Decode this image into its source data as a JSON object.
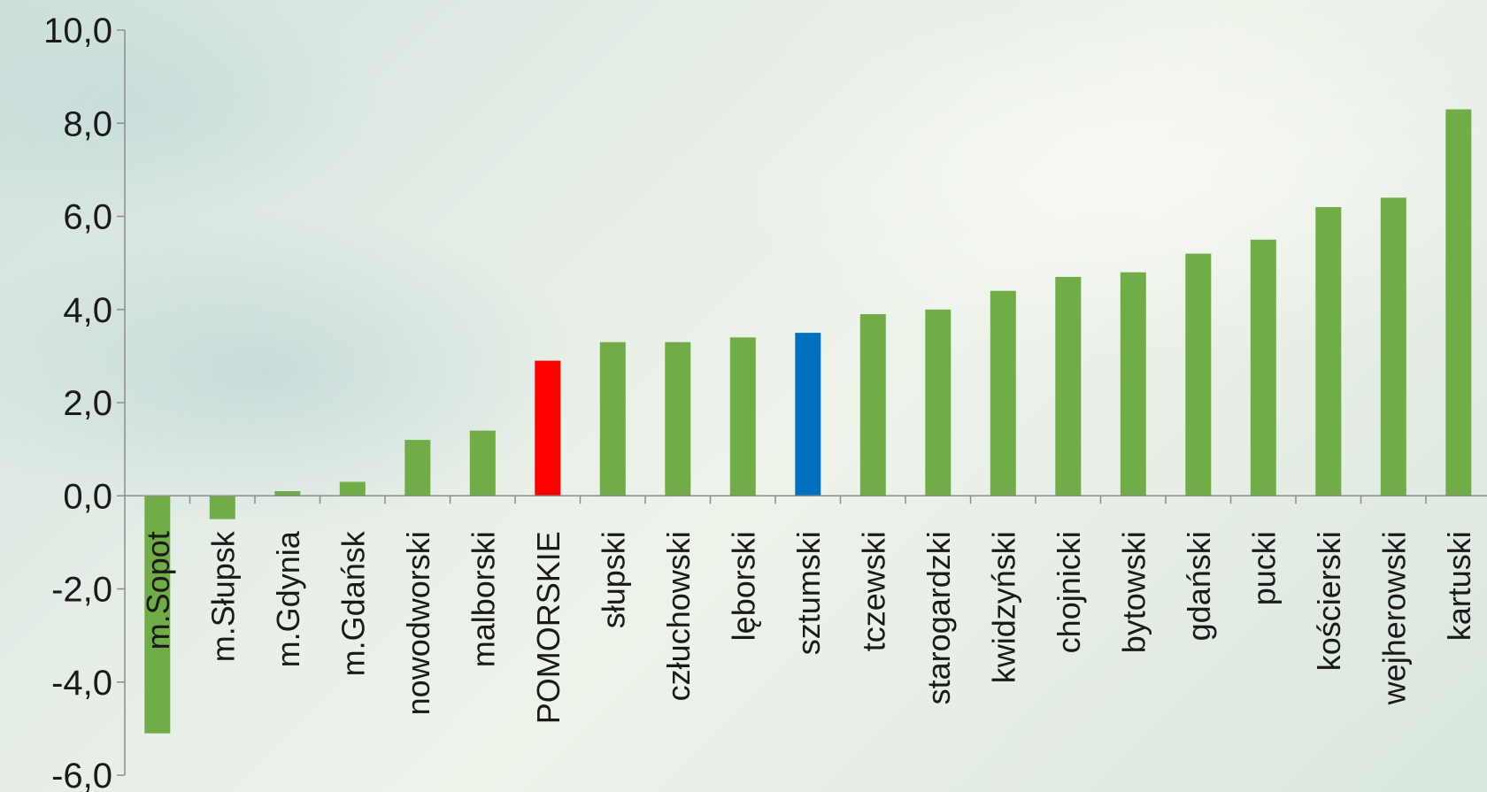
{
  "chart_data": {
    "type": "bar",
    "categories": [
      "m.Sopot",
      "m.Słupsk",
      "m.Gdynia",
      "m.Gdańsk",
      "nowodworski",
      "malborski",
      "POMORSKIE",
      "słupski",
      "człuchowski",
      "lęborski",
      "sztumski",
      "tczewski",
      "starogardzki",
      "kwidzyński",
      "chojnicki",
      "bytowski",
      "gdański",
      "pucki",
      "kościerski",
      "wejherowski",
      "kartuski"
    ],
    "values": [
      -5.1,
      -0.5,
      0.1,
      0.3,
      1.2,
      1.4,
      2.9,
      3.3,
      3.3,
      3.4,
      3.5,
      3.9,
      4.0,
      4.4,
      4.7,
      4.8,
      5.2,
      5.5,
      6.2,
      6.4,
      8.3
    ],
    "colors": [
      "#70ad47",
      "#70ad47",
      "#70ad47",
      "#70ad47",
      "#70ad47",
      "#70ad47",
      "#ff0000",
      "#70ad47",
      "#70ad47",
      "#70ad47",
      "#0070c0",
      "#70ad47",
      "#70ad47",
      "#70ad47",
      "#70ad47",
      "#70ad47",
      "#70ad47",
      "#70ad47",
      "#70ad47",
      "#70ad47",
      "#70ad47"
    ],
    "yticks": [
      "10,0",
      "8,0",
      "6,0",
      "4,0",
      "2,0",
      "0,0",
      "-2,0",
      "-4,0",
      "-6,0"
    ],
    "ylim": [
      -6,
      10
    ],
    "ytick_step": 2,
    "grid": false,
    "legend": "none",
    "title": "",
    "xlabel": "",
    "ylabel": ""
  }
}
